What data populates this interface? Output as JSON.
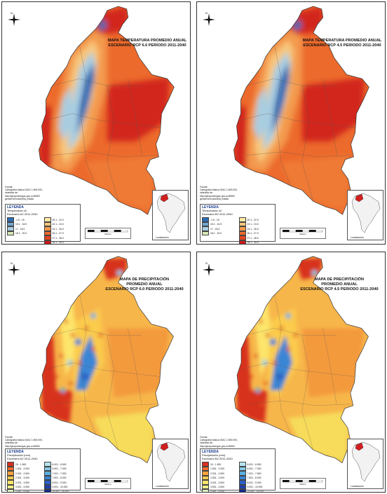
{
  "panels": [
    {
      "id": "temp-rcp60",
      "type": "temperature",
      "title": [
        "MAPA TEMPERATURA PROMEDIO ANUAL",
        "ESCENARIO RCP 6.0 PERIODO 2011-2040"
      ],
      "source": [
        "Fuente:",
        "Cartografía básica IGAC 1:500.000,",
        "obtenida de:",
        "http://geoportal.igac.gov.co:8080/",
        "geoserver/colombia_mdata"
      ],
      "legend_title": "LEYENDA",
      "legend_sub": [
        "Temperatura oC",
        "Escenario A2 2011-2040"
      ],
      "legend_items": [
        {
          "label": "-1.5 - 15",
          "color": "#2e6cb5"
        },
        {
          "label": "20.1 - 22.0",
          "color": "#fbe9a4"
        },
        {
          "label": "15.1 - 16.9",
          "color": "#6fa7cf"
        },
        {
          "label": "22.1 - 24.0",
          "color": "#f8c77b"
        },
        {
          "label": "17 - 18.0",
          "color": "#a9cde0"
        },
        {
          "label": "24.1 - 26.0",
          "color": "#f39a4e"
        },
        {
          "label": "18.1 - 20.0",
          "color": "#d6e5b5"
        },
        {
          "label": "26.1 - 27.0",
          "color": "#ec6a2c"
        },
        {
          "label": "",
          "color": ""
        },
        {
          "label": "27.1 - 28.0",
          "color": "#e04521"
        },
        {
          "label": "",
          "color": ""
        },
        {
          "label": "28.1 - 34.0",
          "color": "#c61a17"
        }
      ],
      "inset_caption": "Localización",
      "scale_label": "Metros"
    },
    {
      "id": "temp-rcp45",
      "type": "temperature",
      "title": [
        "MAPA TEMPERATURA PROMEDIO ANUAL",
        "ESCENARIO RCP 4.5 PERIODO 2011-2040"
      ],
      "source": [
        "Fuente:",
        "Cartografía básica IGAC 1:500.000,",
        "obtenida de:",
        "http://geoportal.igac.gov.co:8080/",
        "geoserver/colombia_mdata"
      ],
      "legend_title": "LEYENDA",
      "legend_sub": [
        "Temperatura oC",
        "Escenario B2 2011-2040"
      ],
      "legend_items": [
        {
          "label": "-1.5 - 15",
          "color": "#2e6cb5"
        },
        {
          "label": "20.1 - 22.0",
          "color": "#fbe9a4"
        },
        {
          "label": "15.1 - 16.9",
          "color": "#6fa7cf"
        },
        {
          "label": "22.1 - 24.0",
          "color": "#f8c77b"
        },
        {
          "label": "17 - 18.0",
          "color": "#a9cde0"
        },
        {
          "label": "24.1 - 26.0",
          "color": "#f39a4e"
        },
        {
          "label": "18.1 - 20.0",
          "color": "#d6e5b5"
        },
        {
          "label": "26.1 - 27.0",
          "color": "#ec6a2c"
        },
        {
          "label": "",
          "color": ""
        },
        {
          "label": "27.1 - 28.0",
          "color": "#e04521"
        },
        {
          "label": "",
          "color": ""
        },
        {
          "label": "28.1 - 34.0",
          "color": "#c61a17"
        }
      ],
      "inset_caption": "Localización",
      "scale_label": "Metros"
    },
    {
      "id": "precip-rcp60",
      "type": "precipitation",
      "title": [
        "MAPA DE PRECIPITACIÓN",
        "PROMEDIO ANUAL",
        "ESCENARIO RCP 6.0 PERIODO 2011-2040"
      ],
      "source": [
        "Fuente:",
        "Cartografía básica IGAC 1:500.000,",
        "obtenida de:",
        "http://geoportal.igac.gov.co:8080/",
        "geoserver/colombia_mdata"
      ],
      "legend_title": "LEYENDA",
      "legend_sub": [
        "Precipitación (mm)",
        "Escenario A2 2011-2040"
      ],
      "legend_items": [
        {
          "label": "15 - 1.500",
          "color": "#d7301f"
        },
        {
          "label": "6.001 - 6.500",
          "color": "#b5e3f0"
        },
        {
          "label": "1.501 - 2.000",
          "color": "#ef6b2a"
        },
        {
          "label": "6.501 - 7.000",
          "color": "#86cbe6"
        },
        {
          "label": "2.001 - 2.500",
          "color": "#f7a23e"
        },
        {
          "label": "7.001 - 7.500",
          "color": "#5aaee0"
        },
        {
          "label": "2.501 - 3.000",
          "color": "#fbcb4c"
        },
        {
          "label": "7.501 - 8.000",
          "color": "#3a86d4"
        },
        {
          "label": "3.001 - 3.500",
          "color": "#fde46a"
        },
        {
          "label": "8.001 - 9.000",
          "color": "#2a5fc4"
        },
        {
          "label": "3.501 - 4.500",
          "color": "#f3ef8a"
        },
        {
          "label": "9.001 - 10.000",
          "color": "#1f3fae"
        },
        {
          "label": "4.501 - 6.000",
          "color": "#dff2c2"
        },
        {
          "label": "10.001 - 15.027",
          "color": "#142a8f"
        }
      ],
      "inset_caption": "Localización",
      "scale_label": "Metros"
    },
    {
      "id": "precip-rcp45",
      "type": "precipitation",
      "title": [
        "MAPA DE PRECIPITACIÓN",
        "PROMEDIO ANUAL",
        "ESCENARIO RCP 4.5 PERIODO 2011-2040"
      ],
      "source": [
        "Fuente:",
        "Cartografía básica IGAC 1:500.000,",
        "obtenida de:",
        "http://geoportal.igac.gov.co:8080/",
        "geoserver/colombia_mdata"
      ],
      "legend_title": "LEYENDA",
      "legend_sub": [
        "Precipitación (mm)",
        "Escenario B2 2011-2040"
      ],
      "legend_items": [
        {
          "label": "15 - 1.500",
          "color": "#d7301f"
        },
        {
          "label": "6.001 - 6.500",
          "color": "#b5e3f0"
        },
        {
          "label": "1.501 - 2.000",
          "color": "#ef6b2a"
        },
        {
          "label": "6.501 - 7.000",
          "color": "#86cbe6"
        },
        {
          "label": "2.001 - 2.500",
          "color": "#f7a23e"
        },
        {
          "label": "7.001 - 7.500",
          "color": "#5aaee0"
        },
        {
          "label": "2.501 - 3.000",
          "color": "#fbcb4c"
        },
        {
          "label": "7.501 - 8.000",
          "color": "#3a86d4"
        },
        {
          "label": "3.001 - 3.500",
          "color": "#fde46a"
        },
        {
          "label": "8.001 - 9.000",
          "color": "#2a5fc4"
        },
        {
          "label": "3.501 - 4.500",
          "color": "#f3ef8a"
        },
        {
          "label": "9.001 - 10.000",
          "color": "#1f3fae"
        },
        {
          "label": "4.501 - 6.000",
          "color": "#dff2c2"
        },
        {
          "label": "10.001 - 15.027",
          "color": "#142a8f"
        }
      ],
      "inset_caption": "Localización",
      "scale_label": "Metros"
    }
  ],
  "colors": {
    "temp_hot": "#d2261c",
    "temp_warm": "#ec6a2c",
    "temp_mid": "#f39a4e",
    "temp_cool": "#a9cde0",
    "temp_cold": "#2e6cb5",
    "precip_dry": "#d7301f",
    "precip_mid": "#f7a23e",
    "precip_base": "#f7b64a",
    "precip_wet": "#3a86d4",
    "precip_south": "#f6dc5a",
    "north_label": "N"
  }
}
